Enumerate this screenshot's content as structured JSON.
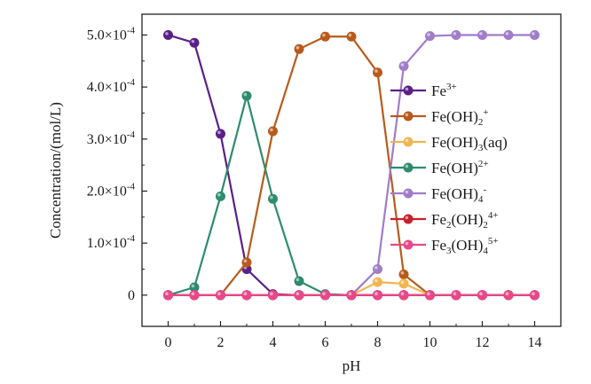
{
  "chart_data": {
    "type": "line",
    "xlabel": "pH",
    "ylabel": "Concentration/(mol/L)",
    "xlim": [
      -1,
      15
    ],
    "ylim": [
      -6e-05,
      0.00054
    ],
    "grid": false,
    "legend_position": "right",
    "x_ticks": [
      0,
      2,
      4,
      6,
      8,
      10,
      12,
      14
    ],
    "x_tick_labels": [
      "0",
      "2",
      "4",
      "6",
      "8",
      "10",
      "12",
      "14"
    ],
    "y_ticks": [
      0,
      0.0001,
      0.0002,
      0.0003,
      0.0004,
      0.0005
    ],
    "y_tick_labels": [
      {
        "mantissa": "0",
        "exp": ""
      },
      {
        "mantissa": "1.0×10",
        "exp": "-4"
      },
      {
        "mantissa": "2.0×10",
        "exp": "-4"
      },
      {
        "mantissa": "3.0×10",
        "exp": "-4"
      },
      {
        "mantissa": "4.0×10",
        "exp": "-4"
      },
      {
        "mantissa": "5.0×10",
        "exp": "-4"
      }
    ],
    "x": [
      0,
      1,
      2,
      3,
      4,
      5,
      6,
      7,
      8,
      9,
      10,
      11,
      12,
      13,
      14
    ],
    "series": [
      {
        "name": "Fe3+",
        "label_parts": [
          {
            "t": "Fe",
            "s": ""
          },
          {
            "t": "3+",
            "s": "sup"
          }
        ],
        "color": "#5b1f86",
        "values": [
          0.0005,
          0.000485,
          0.00031,
          5e-05,
          2e-06,
          0,
          0,
          0,
          0,
          0,
          0,
          0,
          0,
          0,
          0
        ]
      },
      {
        "name": "Fe(OH)2+",
        "label_parts": [
          {
            "t": "Fe(OH)",
            "s": ""
          },
          {
            "t": "2",
            "s": "sub"
          },
          {
            "t": "+",
            "s": "sup"
          }
        ],
        "color": "#b85a1c",
        "values": [
          0,
          0,
          0,
          6.3e-05,
          0.000315,
          0.000473,
          0.000497,
          0.000497,
          0.000428,
          4e-05,
          0,
          0,
          0,
          0,
          0
        ]
      },
      {
        "name": "Fe(OH)3(aq)",
        "label_parts": [
          {
            "t": "Fe(OH)",
            "s": ""
          },
          {
            "t": "3",
            "s": "sub"
          },
          {
            "t": "(aq)",
            "s": ""
          }
        ],
        "color": "#f0b552",
        "values": [
          0,
          0,
          0,
          0,
          0,
          0,
          0,
          0,
          2.5e-05,
          2.2e-05,
          0,
          0,
          0,
          0,
          0
        ]
      },
      {
        "name": "Fe(OH)2+",
        "label_parts": [
          {
            "t": "Fe(OH)",
            "s": ""
          },
          {
            "t": "2+",
            "s": "sup"
          }
        ],
        "color": "#2e8b6e",
        "values": [
          0,
          1.5e-05,
          0.00019,
          0.000383,
          0.000185,
          2.7e-05,
          2e-06,
          0,
          0,
          0,
          0,
          0,
          0,
          0,
          0
        ]
      },
      {
        "name": "Fe(OH)4-",
        "label_parts": [
          {
            "t": "Fe(OH)",
            "s": ""
          },
          {
            "t": "4",
            "s": "sub"
          },
          {
            "t": "-",
            "s": "sup"
          }
        ],
        "color": "#a07cc9",
        "values": [
          0,
          0,
          0,
          0,
          0,
          0,
          0,
          0,
          5e-05,
          0.00044,
          0.000498,
          0.0005,
          0.0005,
          0.0005,
          0.0005
        ]
      },
      {
        "name": "Fe2(OH)24+",
        "label_parts": [
          {
            "t": "Fe",
            "s": ""
          },
          {
            "t": "2",
            "s": "sub"
          },
          {
            "t": "(OH)",
            "s": ""
          },
          {
            "t": "2",
            "s": "sub"
          },
          {
            "t": "4+",
            "s": "sup"
          }
        ],
        "color": "#c8202a",
        "values": [
          0,
          0,
          0,
          0,
          0,
          0,
          0,
          0,
          0,
          0,
          0,
          0,
          0,
          0,
          0
        ]
      },
      {
        "name": "Fe3(OH)45+",
        "label_parts": [
          {
            "t": "Fe",
            "s": ""
          },
          {
            "t": "3",
            "s": "sub"
          },
          {
            "t": "(OH)",
            "s": ""
          },
          {
            "t": "4",
            "s": "sub"
          },
          {
            "t": "5+",
            "s": "sup"
          }
        ],
        "color": "#e8488a",
        "values": [
          0,
          0,
          0,
          0,
          0,
          0,
          0,
          0,
          0,
          0,
          0,
          0,
          0,
          0,
          0
        ]
      }
    ]
  }
}
